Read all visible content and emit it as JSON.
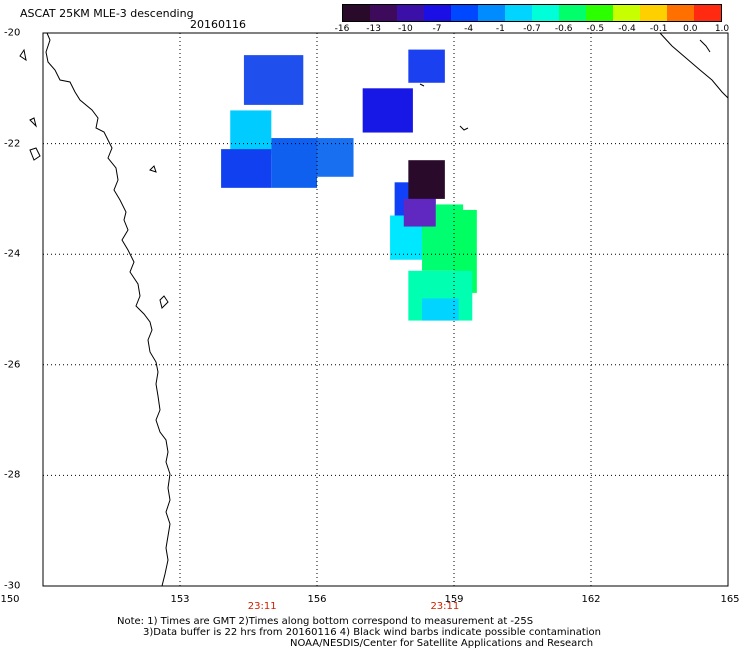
{
  "title": "ASCAT 25KM MLE-3 descending",
  "date": "20160116",
  "colorbar": {
    "labels": [
      "-16",
      "-13",
      "-10",
      "-7",
      "-4",
      "-1",
      "-0.7",
      "-0.6",
      "-0.5",
      "-0.4",
      "-0.1",
      "0.0",
      "1.0"
    ],
    "colors": [
      "#2a0a2a",
      "#3d0a5c",
      "#3a10a8",
      "#1a10e6",
      "#0048ff",
      "#008cff",
      "#00d4ff",
      "#00ffd8",
      "#00ff6a",
      "#2cff00",
      "#c8ff00",
      "#ffd000",
      "#ff7000",
      "#ff2a10"
    ]
  },
  "map": {
    "lat_range": [
      -30,
      -20
    ],
    "lon_range": [
      150,
      165
    ],
    "lat_labels": [
      "-20",
      "-22",
      "-24",
      "-26",
      "-28",
      "-30"
    ],
    "lon_labels": [
      "150",
      "153",
      "156",
      "159",
      "162",
      "165"
    ],
    "time_labels": [
      {
        "lon": 154.8,
        "text": "23:11"
      },
      {
        "lon": 158.8,
        "text": "23:11"
      }
    ],
    "cells": [
      {
        "lon": [
          154.6,
          155.7
        ],
        "lat": [
          -20.4,
          -21.3
        ],
        "color": "#1f50ee"
      },
      {
        "lon": [
          158.0,
          158.8
        ],
        "lat": [
          -20.3,
          -20.9
        ],
        "color": "#1a40f0"
      },
      {
        "lon": [
          155.5,
          156.7
        ],
        "lat": [
          -22.0,
          -22.7
        ],
        "color": "#1870f0"
      },
      {
        "lon": [
          157.9,
          159.2
        ],
        "lat": [
          -22.2,
          -23.2
        ],
        "color": "#b8f0ff"
      },
      {
        "lon": [
          157.7,
          158.4
        ],
        "lat": [
          -22.3,
          -22.8
        ],
        "color": "#3a0a3a"
      }
    ],
    "wind_cells": [
      {
        "lon": [
          154.4,
          155.7
        ],
        "lat": [
          -20.4,
          -21.3
        ],
        "color": "#1f50ee"
      },
      {
        "lon": [
          158.0,
          158.8
        ],
        "lat": [
          -20.3,
          -20.9
        ],
        "color": "#1a40f0"
      },
      {
        "lon": [
          157.0,
          158.1
        ],
        "lat": [
          -21.0,
          -21.8
        ],
        "color": "#1818e6"
      },
      {
        "lon": [
          154.1,
          155.0
        ],
        "lat": [
          -21.4,
          -22.2
        ],
        "color": "#00ccff"
      },
      {
        "lon": [
          153.9,
          155.0
        ],
        "lat": [
          -22.1,
          -22.8
        ],
        "color": "#1040f0"
      },
      {
        "lon": [
          155.0,
          156.0
        ],
        "lat": [
          -21.9,
          -22.8
        ],
        "color": "#1060f0"
      },
      {
        "lon": [
          156.0,
          156.8
        ],
        "lat": [
          -21.9,
          -22.6
        ],
        "color": "#1870f0"
      },
      {
        "lon": [
          157.7,
          158.6
        ],
        "lat": [
          -22.7,
          -23.6
        ],
        "color": "#1040f8"
      },
      {
        "lon": [
          158.0,
          158.8
        ],
        "lat": [
          -22.3,
          -23.0
        ],
        "color": "#2a0a2a"
      },
      {
        "lon": [
          157.6,
          158.3
        ],
        "lat": [
          -23.3,
          -24.1
        ],
        "color": "#00e8ff"
      },
      {
        "lon": [
          158.3,
          159.2
        ],
        "lat": [
          -23.1,
          -24.3
        ],
        "color": "#00ff70"
      },
      {
        "lon": [
          159.0,
          159.5
        ],
        "lat": [
          -23.2,
          -24.7
        ],
        "color": "#00ff60"
      },
      {
        "lon": [
          158.0,
          159.4
        ],
        "lat": [
          -24.3,
          -25.2
        ],
        "color": "#00ffb0"
      },
      {
        "lon": [
          158.3,
          159.1
        ],
        "lat": [
          -24.8,
          -25.2
        ],
        "color": "#00d4ff"
      },
      {
        "lon": [
          157.9,
          158.6
        ],
        "lat": [
          -23.0,
          -23.5
        ],
        "color": "#6028c0"
      }
    ]
  },
  "notes": [
    "Note: 1) Times are GMT 2)Times along bottom correspond to measurement at -25S",
    "3)Data buffer is 22 hrs from 20160116 4) Black wind barbs indicate possible contamination",
    "NOAA/NESDIS/Center for Satellite Applications and Research"
  ]
}
